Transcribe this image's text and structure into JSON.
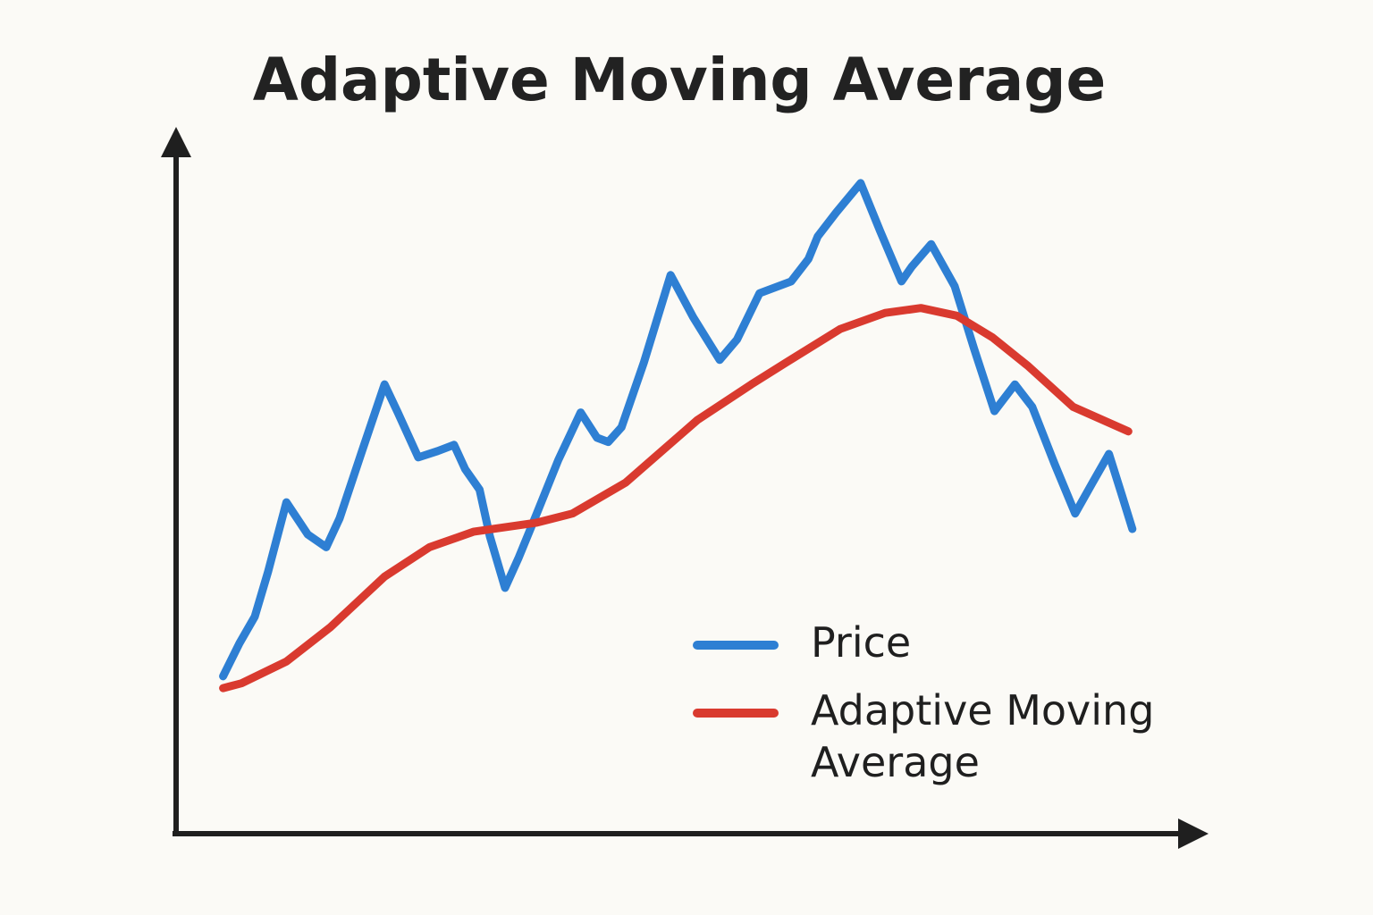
{
  "chart_data": {
    "type": "line",
    "title": "Adaptive Moving Average",
    "xlim": [
      0,
      100
    ],
    "ylim": [
      0,
      100
    ],
    "legend": "lower right",
    "series": [
      {
        "name": "Price",
        "color": "#2e7fd3",
        "x": [
          4.6,
          6.2,
          7.7,
          9.0,
          10.8,
          12.9,
          14.7,
          16.0,
          18.2,
          20.4,
          21.7,
          23.7,
          25.6,
          27.2,
          28.3,
          29.7,
          30.7,
          32.2,
          33.5,
          35.3,
          37.4,
          39.6,
          41.2,
          42.3,
          43.6,
          45.8,
          48.4,
          50.6,
          53.2,
          54.9,
          57.1,
          60.2,
          61.9,
          62.8,
          64.6,
          67.0,
          68.9,
          71.0,
          72.0,
          73.9,
          76.2,
          78.1,
          80.1,
          82.1,
          83.8,
          86.0,
          88.0,
          89.7,
          91.3,
          92.6,
          93.6
        ],
        "values": [
          22.7,
          27.4,
          31.2,
          37.6,
          47.5,
          42.9,
          41.1,
          45.2,
          54.8,
          64.3,
          60.3,
          53.9,
          54.8,
          55.7,
          52.2,
          49.3,
          42.7,
          35.3,
          39.5,
          45.9,
          53.5,
          60.3,
          56.7,
          56.1,
          58.2,
          67.5,
          79.9,
          73.9,
          67.8,
          70.7,
          77.3,
          79.0,
          82.2,
          85.4,
          88.8,
          93.0,
          86.2,
          79.0,
          81.1,
          84.3,
          78.3,
          69.4,
          60.5,
          64.3,
          61.1,
          52.9,
          45.9,
          50.3,
          54.4,
          48.4,
          43.7
        ]
      },
      {
        "name": "Adaptive Moving Average",
        "color": "#d93a2f",
        "x": [
          4.6,
          6.4,
          10.8,
          15.1,
          20.4,
          24.8,
          29.1,
          35.3,
          38.8,
          44.0,
          51.0,
          56.3,
          59.8,
          65.0,
          69.4,
          72.9,
          76.4,
          79.9,
          83.4,
          87.8,
          93.2
        ],
        "values": [
          21.0,
          21.7,
          24.8,
          29.7,
          36.9,
          41.1,
          43.3,
          44.6,
          45.9,
          50.3,
          59.2,
          64.3,
          67.5,
          72.2,
          74.5,
          75.2,
          74.1,
          71.0,
          66.9,
          61.1,
          57.6
        ]
      }
    ]
  }
}
